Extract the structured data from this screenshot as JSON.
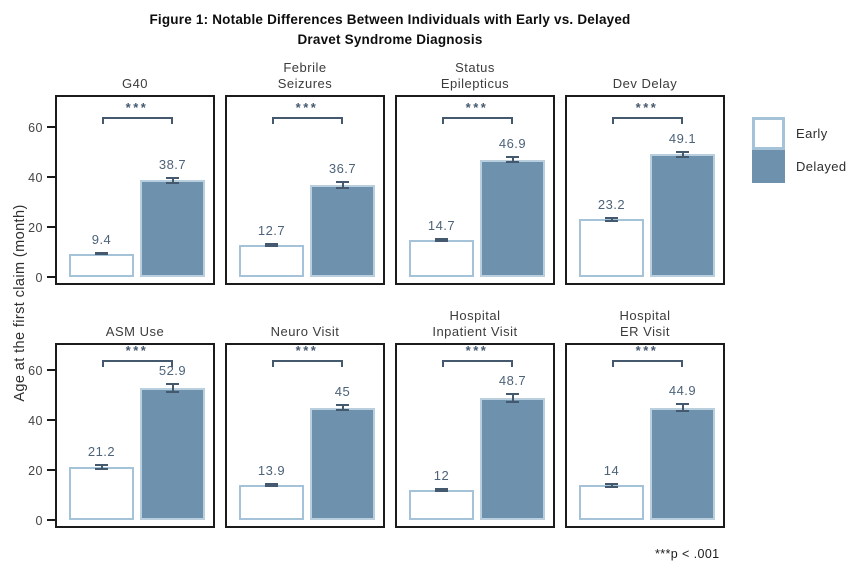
{
  "figure": {
    "title_lines": [
      "Figure 1: Notable Differences Between Individuals with Early vs. Delayed",
      "Dravet Syndrome Diagnosis"
    ],
    "y_axis_label": "Age at the first claim (month)",
    "footnote": "***p < .001"
  },
  "legend": {
    "items": [
      {
        "label": "Early"
      },
      {
        "label": "Delayed"
      }
    ]
  },
  "colors": {
    "delayed_fill": "#6e91ae",
    "early_border": "#a4c2d8",
    "error_and_bracket": "#44586e",
    "value_label": "#4d6379",
    "panel_border": "#1b1b1b"
  },
  "chart_data": {
    "type": "bar",
    "title": "Figure 1: Notable Differences Between Individuals with Early vs. Delayed Dravet Syndrome Diagnosis",
    "xlabel": "",
    "ylabel": "Age at the first claim (month)",
    "yticks": [
      0,
      20,
      40,
      60
    ],
    "ylim": [
      0,
      73
    ],
    "grid": false,
    "legend_position": "right",
    "series_names": [
      "Early",
      "Delayed"
    ],
    "significance_note": "***p < .001",
    "panels": [
      {
        "title": "G40",
        "early": 9.4,
        "delayed": 38.7,
        "early_err": 0.6,
        "delayed_err": 1.4,
        "sig": "***"
      },
      {
        "title": "Febrile\nSeizures",
        "early": 12.7,
        "delayed": 36.7,
        "early_err": 0.8,
        "delayed_err": 1.6,
        "sig": "***"
      },
      {
        "title": "Status\nEpilepticus",
        "early": 14.7,
        "delayed": 46.9,
        "early_err": 0.8,
        "delayed_err": 1.4,
        "sig": "***"
      },
      {
        "title": "Dev Delay",
        "early": 23.2,
        "delayed": 49.1,
        "early_err": 1.0,
        "delayed_err": 1.4,
        "sig": "***"
      },
      {
        "title": "ASM Use",
        "early": 21.2,
        "delayed": 52.9,
        "early_err": 1.2,
        "delayed_err": 2.0,
        "sig": "***"
      },
      {
        "title": "Neuro Visit",
        "early": 13.9,
        "delayed": 45,
        "early_err": 0.8,
        "delayed_err": 1.4,
        "sig": "***"
      },
      {
        "title": "Hospital\nInpatient Visit",
        "early": 12,
        "delayed": 48.7,
        "early_err": 0.8,
        "delayed_err": 2.0,
        "sig": "***"
      },
      {
        "title": "Hospital\nER Visit",
        "early": 14,
        "delayed": 44.9,
        "early_err": 1.0,
        "delayed_err": 1.8,
        "sig": "***"
      }
    ]
  }
}
